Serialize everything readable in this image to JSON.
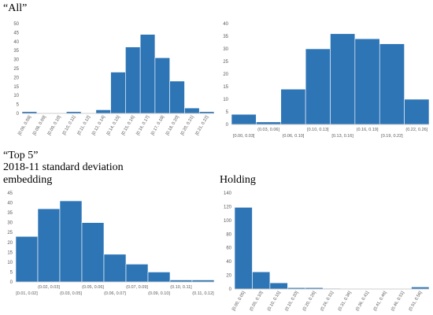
{
  "headings": {
    "all": "“All”",
    "top5": "“Top 5”",
    "std_line1": "2018-11 standard deviation",
    "std_line2": "embedding",
    "holding": "Holding"
  },
  "colors": {
    "bar": "#2E75B6",
    "tick_text": "#595959",
    "axis": "#bfbfbf"
  },
  "chart_data": [
    {
      "id": "all-embedding",
      "type": "bar",
      "categories": [
        "[0.06, 0.08]",
        "[0.08, 0.09]",
        "[0.09, 0.10]",
        "[0.10, 0.11]",
        "[0.11, 0.12]",
        "[0.12, 0.14]",
        "[0.14, 0.15]",
        "[0.15, 0.16]",
        "[0.16, 0.17]",
        "[0.17, 0.18]",
        "[0.18, 0.20]",
        "[0.20, 0.21]",
        "[0.21, 0.22]"
      ],
      "values": [
        1,
        0,
        0,
        1,
        0,
        2,
        23,
        37,
        44,
        31,
        18,
        3,
        1
      ],
      "yticks": [
        0,
        5,
        10,
        15,
        20,
        25,
        30,
        35,
        40,
        45,
        50
      ],
      "ylim": [
        0,
        50
      ],
      "label_mode": "rotated"
    },
    {
      "id": "all-holding",
      "type": "bar",
      "categories": [
        "[0.00, 0.03]",
        "(0.03, 0.06]",
        "(0.06, 0.10]",
        "[0.10, 0.13]",
        "[0.13, 0.16]",
        "(0.16, 0.19]",
        "[0.19, 0.22]",
        "(0.22, 0.26]"
      ],
      "values": [
        4,
        1,
        14,
        30,
        36,
        34,
        32,
        10
      ],
      "yticks": [
        0,
        5,
        10,
        15,
        20,
        25,
        30,
        35,
        40
      ],
      "ylim": [
        0,
        40
      ],
      "label_mode": "staggered"
    },
    {
      "id": "top5-embedding",
      "type": "bar",
      "categories": [
        "[0.01, 0.02]",
        "(0.02, 0.03]",
        "(0.03, 0.05]",
        "(0.05, 0.06]",
        "(0.06, 0.07]",
        "(0.07, 0.09]",
        "(0.09, 0.10]",
        "(0.10, 0.11]",
        "(0.11, 0.12]"
      ],
      "values": [
        23,
        37,
        41,
        30,
        14,
        9,
        5,
        1,
        1
      ],
      "yticks": [
        0,
        5,
        10,
        15,
        20,
        25,
        30,
        35,
        40,
        45
      ],
      "ylim": [
        0,
        45
      ],
      "label_mode": "staggered"
    },
    {
      "id": "top5-holding",
      "type": "bar",
      "categories": [
        "[0.00, 0.05]",
        "(0.05, 0.10]",
        "(0.10, 0.15]",
        "(0.15, 0.20]",
        "(0.20, 0.26]",
        "(0.26, 0.31]",
        "(0.31, 0.36]",
        "(0.36, 0.41]",
        "(0.41, 0.46]",
        "(0.46, 0.51]",
        "(0.51, 0.56]"
      ],
      "values": [
        119,
        25,
        9,
        2,
        2,
        1,
        0,
        0,
        0,
        0,
        3
      ],
      "yticks": [
        0,
        20,
        40,
        60,
        80,
        100,
        120,
        140
      ],
      "ylim": [
        0,
        140
      ],
      "label_mode": "rotated"
    }
  ]
}
